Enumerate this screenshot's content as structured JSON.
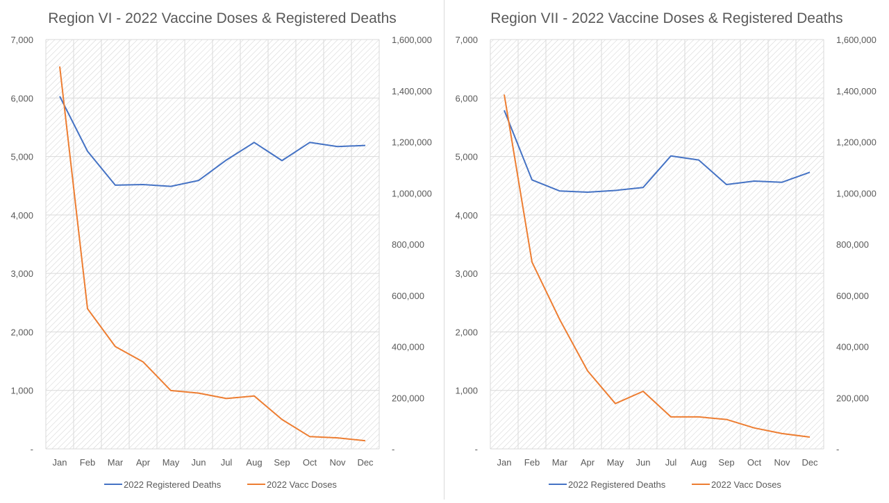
{
  "charts": [
    {
      "title": "Region VI - 2022 Vaccine Doses & Registered Deaths",
      "chart_data": {
        "type": "line",
        "title": "Region VI - 2022 Vaccine Doses & Registered Deaths",
        "categories": [
          "Jan",
          "Feb",
          "Mar",
          "Apr",
          "May",
          "Jun",
          "Jul",
          "Aug",
          "Sep",
          "Oct",
          "Nov",
          "Dec"
        ],
        "y_left": {
          "ylim": [
            0,
            7000
          ],
          "ticks": [
            0,
            1000,
            2000,
            3000,
            4000,
            5000,
            6000,
            7000
          ],
          "tick_labels": [
            "-",
            "1,000",
            "2,000",
            "3,000",
            "4,000",
            "5,000",
            "6,000",
            "7,000"
          ]
        },
        "y_right": {
          "ylim": [
            0,
            1600000
          ],
          "ticks": [
            0,
            200000,
            400000,
            600000,
            800000,
            1000000,
            1200000,
            1400000,
            1600000
          ],
          "tick_labels": [
            "-",
            "200,000",
            "400,000",
            "600,000",
            "800,000",
            "1,000,000",
            "1,200,000",
            "1,400,000",
            "1,600,000"
          ]
        },
        "series": [
          {
            "name": "2022 Registered Deaths",
            "axis": "left",
            "color": "#4472C4",
            "values": [
              6030,
              5090,
              4510,
              4520,
              4490,
              4590,
              4940,
              5240,
              4930,
              5240,
              5170,
              5190
            ]
          },
          {
            "name": "2022 Vacc Doses",
            "axis": "right",
            "color": "#ED7D31",
            "values": [
              1495000,
              548000,
              400000,
              340000,
              228000,
              218000,
              197000,
              207000,
              115000,
              48000,
              43000,
              32000
            ]
          }
        ],
        "grid": true,
        "legend": "bottom"
      }
    },
    {
      "title": "Region VII - 2022 Vaccine Doses & Registered Deaths",
      "chart_data": {
        "type": "line",
        "title": "Region VII - 2022 Vaccine Doses & Registered Deaths",
        "categories": [
          "Jan",
          "Feb",
          "Mar",
          "Apr",
          "May",
          "Jun",
          "Jul",
          "Aug",
          "Sep",
          "Oct",
          "Nov",
          "Dec"
        ],
        "y_left": {
          "ylim": [
            0,
            7000
          ],
          "ticks": [
            0,
            1000,
            2000,
            3000,
            4000,
            5000,
            6000,
            7000
          ],
          "tick_labels": [
            "-",
            "1,000",
            "2,000",
            "3,000",
            "4,000",
            "5,000",
            "6,000",
            "7,000"
          ]
        },
        "y_right": {
          "ylim": [
            0,
            1600000
          ],
          "ticks": [
            0,
            200000,
            400000,
            600000,
            800000,
            1000000,
            1200000,
            1400000,
            1600000
          ],
          "tick_labels": [
            "-",
            "200,000",
            "400,000",
            "600,000",
            "800,000",
            "1,000,000",
            "1,200,000",
            "1,400,000",
            "1,600,000"
          ]
        },
        "series": [
          {
            "name": "2022 Registered Deaths",
            "axis": "left",
            "color": "#4472C4",
            "values": [
              5790,
              4600,
              4410,
              4390,
              4420,
              4470,
              5010,
              4940,
              4520,
              4580,
              4560,
              4730
            ]
          },
          {
            "name": "2022 Vacc Doses",
            "axis": "right",
            "color": "#ED7D31",
            "values": [
              1385000,
              730000,
              505000,
              305000,
              177000,
              225000,
              125000,
              125000,
              115000,
              82000,
              60000,
              46000
            ]
          }
        ],
        "grid": true,
        "legend": "bottom"
      }
    }
  ],
  "colors": {
    "grid": "#d9d9d9",
    "text": "#595959",
    "title": "#595959",
    "hatch": "#d0d0d0"
  }
}
